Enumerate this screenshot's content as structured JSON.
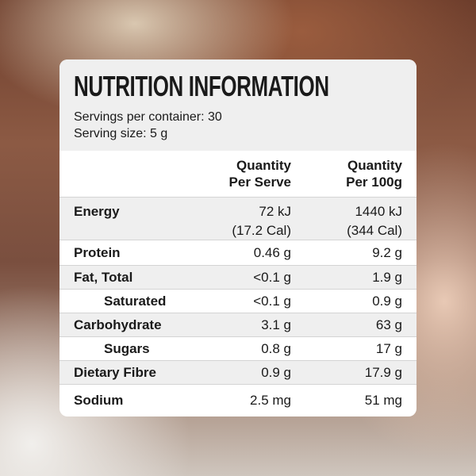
{
  "header": {
    "title": "NUTRITION INFORMATION",
    "servings_per_container": "Servings per container: 30",
    "serving_size": "Serving size: 5 g"
  },
  "table": {
    "columns": [
      [
        "Quantity",
        "Per Serve"
      ],
      [
        "Quantity",
        "Per 100g"
      ]
    ],
    "rows": [
      [
        "Energy",
        [
          "72 kJ",
          "(17.2 Cal)"
        ],
        [
          "1440 kJ",
          "(344 Cal)"
        ]
      ],
      [
        "Protein",
        "0.46 g",
        "9.2 g"
      ],
      [
        "Fat, Total",
        "<0.1 g",
        "1.9 g"
      ],
      [
        "Saturated",
        "<0.1 g",
        "0.9 g"
      ],
      [
        "Carbohydrate",
        "3.1 g",
        "63 g"
      ],
      [
        "Sugars",
        "0.8 g",
        "17 g"
      ],
      [
        "Dietary Fibre",
        "0.9 g",
        "17.9 g"
      ],
      [
        "Sodium",
        "2.5 mg",
        "51 mg"
      ]
    ]
  }
}
